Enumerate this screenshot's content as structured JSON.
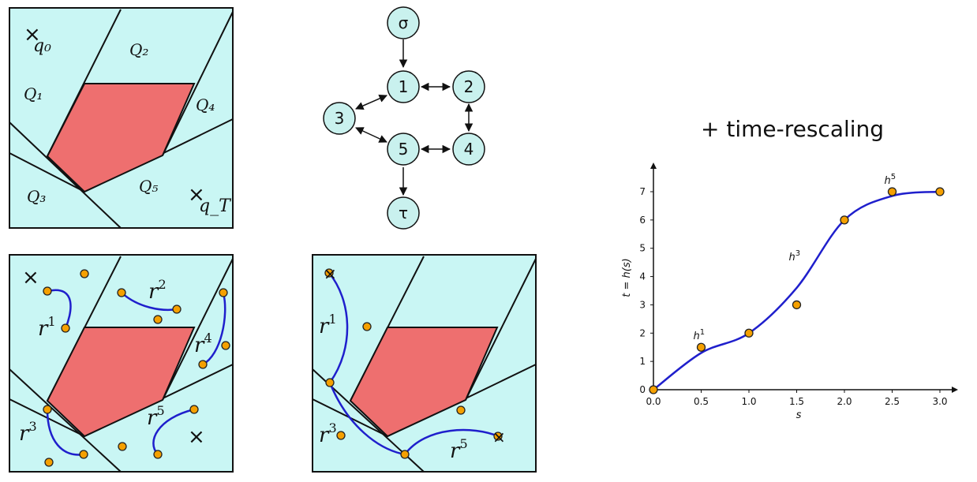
{
  "colors": {
    "region": "#c9f6f4",
    "obstacle": "#ee6f6f",
    "point": "#f5a000",
    "curve": "#1f1fcc"
  },
  "panel_top": {
    "start_label": "q₀",
    "goal_label": "q_T",
    "regions": [
      "Q₁",
      "Q₂",
      "Q₃",
      "Q₄",
      "Q₅"
    ]
  },
  "graph": {
    "nodes": [
      "σ",
      "1",
      "2",
      "3",
      "4",
      "5",
      "τ"
    ]
  },
  "panel_bottom_left": {
    "curves": [
      "r",
      "r",
      "r",
      "r",
      "r"
    ],
    "sup": [
      "1",
      "2",
      "3",
      "4",
      "5"
    ]
  },
  "panel_bottom_mid": {
    "curves": [
      "r",
      "r",
      "r"
    ],
    "sup": [
      "1",
      "3",
      "5"
    ]
  },
  "title": "+ time-rescaling",
  "chart_data": {
    "type": "line",
    "xlabel": "s",
    "ylabel": "t = h(s)",
    "x_ticks": [
      "0.0",
      "0.5",
      "1.0",
      "1.5",
      "2.0",
      "2.5",
      "3.0"
    ],
    "y_ticks": [
      "0",
      "1",
      "2",
      "3",
      "4",
      "5",
      "6",
      "7"
    ],
    "xlim": [
      0,
      3
    ],
    "ylim": [
      0,
      7
    ],
    "points": [
      [
        0,
        0
      ],
      [
        0.5,
        1.5
      ],
      [
        1.0,
        2
      ],
      [
        1.5,
        3
      ],
      [
        2.0,
        6
      ],
      [
        2.5,
        7
      ],
      [
        3.0,
        7
      ]
    ],
    "curve_knots": [
      [
        0,
        0
      ],
      [
        0.5,
        1.3
      ],
      [
        1.0,
        2
      ],
      [
        1.5,
        3.6
      ],
      [
        2.0,
        6
      ],
      [
        2.5,
        6.85
      ],
      [
        3.0,
        7
      ]
    ],
    "annotations": [
      {
        "text": "h",
        "sup": "1",
        "x": 0.5,
        "y": 1.5
      },
      {
        "text": "h",
        "sup": "3",
        "x": 1.5,
        "y": 4.3
      },
      {
        "text": "h",
        "sup": "5",
        "x": 2.5,
        "y": 7
      }
    ]
  }
}
